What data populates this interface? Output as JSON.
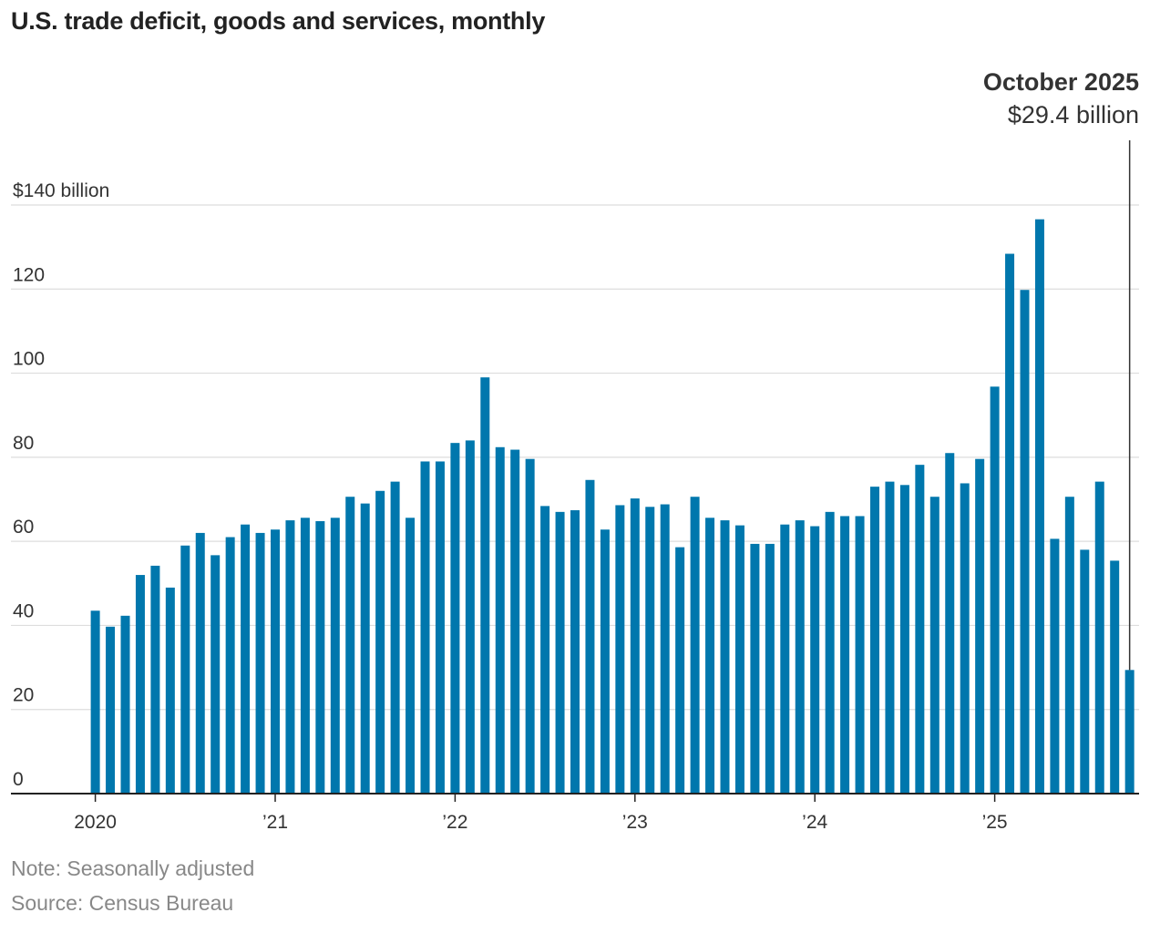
{
  "title": "U.S. trade deficit, goods and services, monthly",
  "note": "Note: Seasonally adjusted",
  "source": "Source: Census Bureau",
  "colors": {
    "bar": "#0077ad",
    "grid": "#dddddd",
    "axis": "#222222",
    "callout_line": "#333333"
  },
  "chart_data": {
    "type": "bar",
    "unit": "billion",
    "y_tick_labels": [
      "0",
      "20",
      "40",
      "60",
      "80",
      "100",
      "120",
      "$140 billion"
    ],
    "y_ticks": [
      0,
      20,
      40,
      60,
      80,
      100,
      120,
      140
    ],
    "ylim": [
      0,
      140
    ],
    "x_tick_labels": [
      {
        "label": "2020",
        "index": 0
      },
      {
        "label": "’21",
        "index": 12
      },
      {
        "label": "’22",
        "index": 24
      },
      {
        "label": "’23",
        "index": 36
      },
      {
        "label": "’24",
        "index": 48
      },
      {
        "label": "’25",
        "index": 60
      }
    ],
    "grid": true,
    "callout": {
      "label": "October 2025",
      "value": "$29.4 billion",
      "index": 69
    },
    "categories": [
      "2020-01",
      "2020-02",
      "2020-03",
      "2020-04",
      "2020-05",
      "2020-06",
      "2020-07",
      "2020-08",
      "2020-09",
      "2020-10",
      "2020-11",
      "2020-12",
      "2021-01",
      "2021-02",
      "2021-03",
      "2021-04",
      "2021-05",
      "2021-06",
      "2021-07",
      "2021-08",
      "2021-09",
      "2021-10",
      "2021-11",
      "2021-12",
      "2022-01",
      "2022-02",
      "2022-03",
      "2022-04",
      "2022-05",
      "2022-06",
      "2022-07",
      "2022-08",
      "2022-09",
      "2022-10",
      "2022-11",
      "2022-12",
      "2023-01",
      "2023-02",
      "2023-03",
      "2023-04",
      "2023-05",
      "2023-06",
      "2023-07",
      "2023-08",
      "2023-09",
      "2023-10",
      "2023-11",
      "2023-12",
      "2024-01",
      "2024-02",
      "2024-03",
      "2024-04",
      "2024-05",
      "2024-06",
      "2024-07",
      "2024-08",
      "2024-09",
      "2024-10",
      "2024-11",
      "2024-12",
      "2025-01",
      "2025-02",
      "2025-03",
      "2025-04",
      "2025-05",
      "2025-06",
      "2025-07",
      "2025-08",
      "2025-09",
      "2025-10"
    ],
    "values": [
      43.5,
      39.7,
      42.3,
      52.0,
      54.2,
      49.0,
      59.0,
      62.0,
      56.7,
      61.0,
      64.0,
      62.0,
      62.8,
      65.0,
      65.6,
      64.8,
      65.6,
      70.6,
      69.0,
      72.0,
      74.2,
      65.6,
      79.0,
      79.0,
      83.4,
      84.0,
      99.0,
      82.4,
      81.8,
      79.6,
      68.4,
      67.0,
      67.4,
      74.6,
      62.8,
      68.6,
      70.2,
      68.2,
      68.8,
      58.6,
      70.6,
      65.6,
      65.0,
      63.8,
      59.4,
      59.4,
      64.0,
      65.0,
      63.6,
      67.0,
      66.0,
      66.0,
      73.0,
      74.2,
      73.4,
      78.2,
      70.6,
      81.0,
      73.8,
      79.6,
      96.8,
      128.4,
      119.8,
      136.6,
      60.6,
      70.6,
      58.0,
      74.2,
      55.4,
      29.4
    ]
  }
}
